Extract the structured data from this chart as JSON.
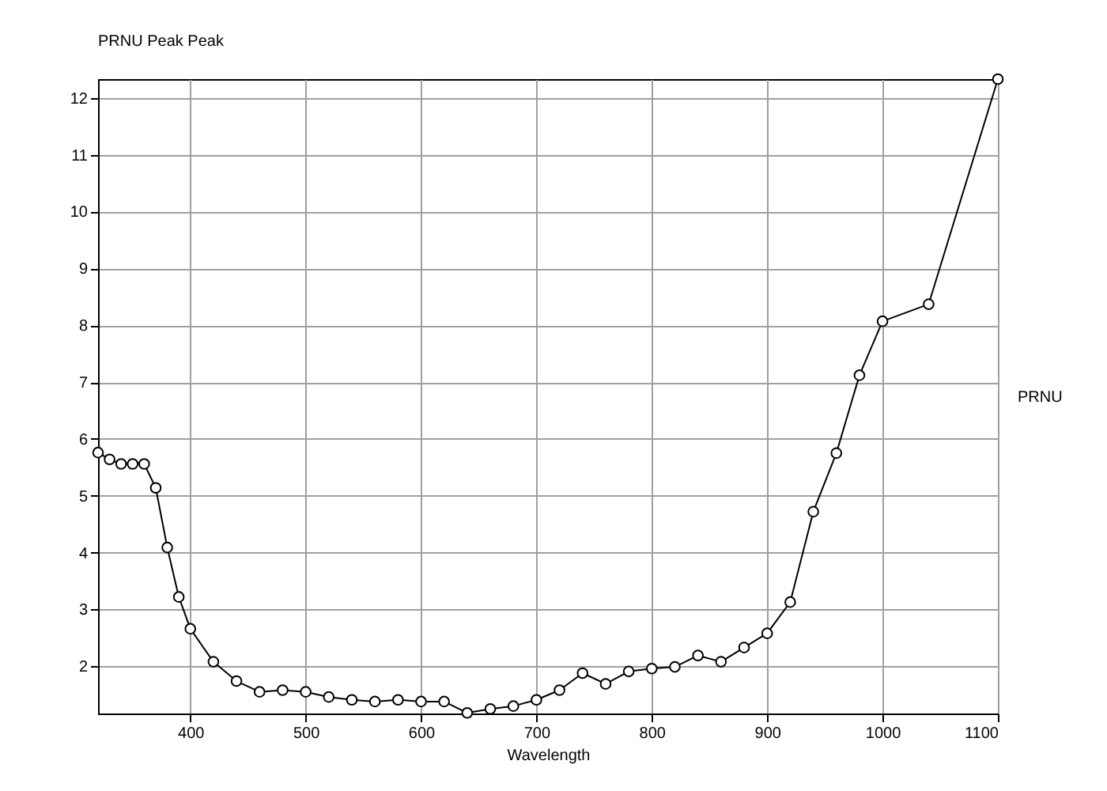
{
  "chart_data": {
    "type": "line",
    "title": "PRNU Peak Peak",
    "xlabel": "Wavelength",
    "ylabel": "PRNU",
    "x": [
      320,
      330,
      340,
      350,
      360,
      370,
      380,
      390,
      400,
      420,
      440,
      460,
      480,
      500,
      520,
      540,
      560,
      580,
      600,
      620,
      640,
      660,
      680,
      700,
      720,
      740,
      760,
      780,
      800,
      820,
      840,
      860,
      880,
      900,
      920,
      940,
      960,
      980,
      1000,
      1040,
      1100
    ],
    "series": [
      {
        "color": "#000000",
        "values": [
          5.76,
          5.64,
          5.56,
          5.56,
          5.56,
          5.14,
          4.09,
          3.22,
          2.66,
          2.08,
          1.74,
          1.55,
          1.58,
          1.55,
          1.46,
          1.41,
          1.38,
          1.41,
          1.38,
          1.38,
          1.18,
          1.25,
          1.3,
          1.41,
          1.58,
          1.88,
          1.69,
          1.91,
          1.96,
          1.99,
          2.19,
          2.08,
          2.33,
          2.58,
          3.13,
          4.72,
          5.75,
          7.12,
          8.07,
          8.37,
          12.33
        ]
      }
    ],
    "xlim": [
      320,
      1100
    ],
    "xticks": [
      400,
      500,
      600,
      700,
      800,
      900,
      1000,
      1100
    ],
    "ylim": [
      1.17,
      12.33
    ],
    "yticks": [
      2,
      3,
      4,
      5,
      6,
      7,
      8,
      9,
      10,
      11,
      12
    ],
    "grid": true,
    "marker": "circle",
    "line_style": "solid",
    "legend": false
  }
}
